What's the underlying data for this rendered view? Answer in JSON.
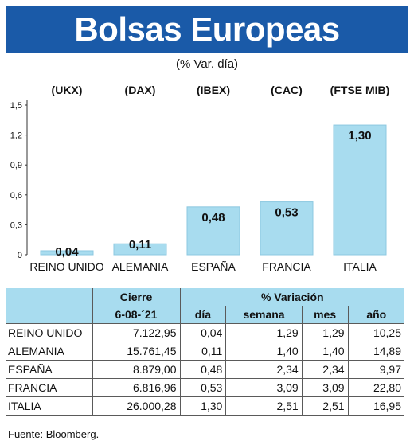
{
  "header": {
    "title": "Bolsas Europeas"
  },
  "subtitle": "(% Var. día)",
  "chart_data": {
    "type": "bar",
    "tickers": [
      "(UKX)",
      "(DAX)",
      "(IBEX)",
      "(CAC)",
      "(FTSE MIB)"
    ],
    "categories": [
      "REINO UNIDO",
      "ALEMANIA",
      "ESPAÑA",
      "FRANCIA",
      "ITALIA"
    ],
    "values": [
      0.04,
      0.11,
      0.48,
      0.53,
      1.3
    ],
    "value_labels": [
      "0,04",
      "0,11",
      "0,48",
      "0,53",
      "1,30"
    ],
    "yticks": [
      0,
      0.3,
      0.6,
      0.9,
      1.2,
      1.5
    ],
    "ytick_labels": [
      "0",
      "0,3",
      "0,6",
      "0,9",
      "1,2",
      "1,5"
    ],
    "ylim": [
      0,
      1.5
    ],
    "grid": false,
    "bar_color": "#a8dcef"
  },
  "table": {
    "header_top": {
      "close": "Cierre",
      "variation": "% Variación"
    },
    "header_bottom": {
      "date": "6-08-´21",
      "day": "día",
      "week": "semana",
      "month": "mes",
      "year": "año"
    },
    "rows": [
      {
        "name": "REINO UNIDO",
        "close": "7.122,95",
        "day": "0,04",
        "week": "1,29",
        "month": "1,29",
        "year": "10,25"
      },
      {
        "name": "ALEMANIA",
        "close": "15.761,45",
        "day": "0,11",
        "week": "1,40",
        "month": "1,40",
        "year": "14,89"
      },
      {
        "name": "ESPAÑA",
        "close": "8.879,00",
        "day": "0,48",
        "week": "2,34",
        "month": "2,34",
        "year": "9,97"
      },
      {
        "name": "FRANCIA",
        "close": "6.816,96",
        "day": "0,53",
        "week": "3,09",
        "month": "3,09",
        "year": "22,80"
      },
      {
        "name": "ITALIA",
        "close": "26.000,28",
        "day": "1,30",
        "week": "2,51",
        "month": "2,51",
        "year": "16,95"
      }
    ]
  },
  "source": "Fuente: Bloomberg.",
  "colors": {
    "header_bg": "#1a5aa8",
    "accent_light": "#a8dcef",
    "bar_stroke": "#8cc8e0"
  }
}
